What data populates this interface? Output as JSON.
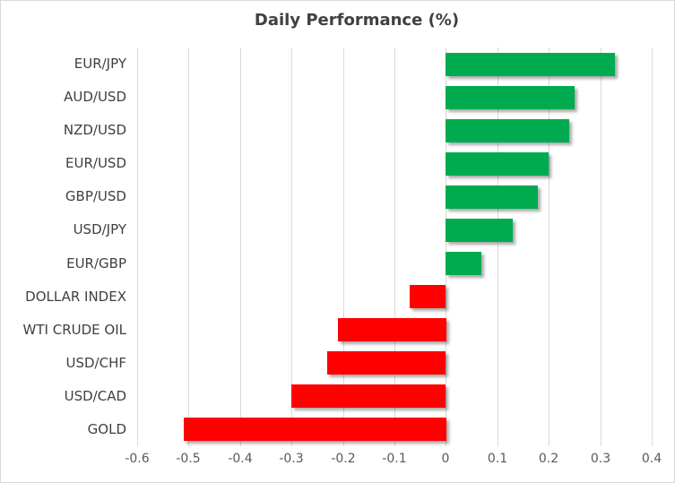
{
  "chart_data": {
    "type": "bar",
    "orientation": "horizontal",
    "title": "Daily Performance (%)",
    "categories": [
      "EUR/JPY",
      "AUD/USD",
      "NZD/USD",
      "EUR/USD",
      "GBP/USD",
      "USD/JPY",
      "EUR/GBP",
      "DOLLAR INDEX",
      "WTI CRUDE OIL",
      "USD/CHF",
      "USD/CAD",
      "GOLD"
    ],
    "values": [
      0.33,
      0.25,
      0.24,
      0.2,
      0.18,
      0.13,
      0.07,
      -0.07,
      -0.21,
      -0.23,
      -0.3,
      -0.51
    ],
    "xlabel": "",
    "ylabel": "",
    "xlim": [
      -0.6,
      0.4
    ],
    "x_ticks": [
      "-0.6",
      "-0.5",
      "-0.4",
      "-0.3",
      "-0.2",
      "-0.1",
      "0",
      "0.1",
      "0.2",
      "0.3",
      "0.4"
    ],
    "x_tick_values": [
      -0.6,
      -0.5,
      -0.4,
      -0.3,
      -0.2,
      -0.1,
      0,
      0.1,
      0.2,
      0.3,
      0.4
    ],
    "grid": "vertical",
    "legend": "none",
    "colors": {
      "positive_bar": "#00AB50",
      "negative_bar": "#FF0000",
      "gridline": "#D9D9D9",
      "title_text": "#404040",
      "category_text": "#404040",
      "tick_text": "#595959",
      "chart_border": "#D9D9D9",
      "background": "#FFFFFF"
    }
  }
}
